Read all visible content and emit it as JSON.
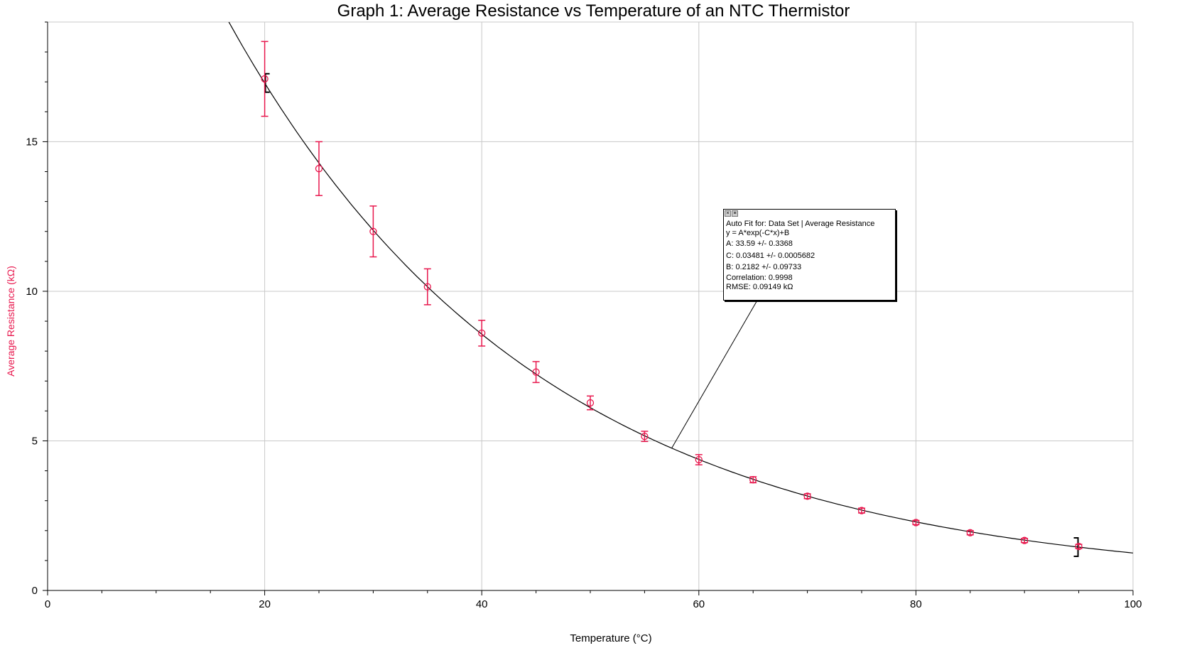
{
  "chart_data": {
    "type": "scatter",
    "title": "Graph 1: Average Resistance vs Temperature of an NTC Thermistor",
    "xlabel": "Temperature (°C)",
    "ylabel": "Average Resistance (kΩ)",
    "xlim": [
      0,
      100
    ],
    "ylim": [
      0,
      19
    ],
    "x_ticks": [
      0,
      20,
      40,
      60,
      80,
      100
    ],
    "y_ticks": [
      0,
      5,
      10,
      15
    ],
    "grid": true,
    "series": [
      {
        "name": "Average Resistance",
        "color": "#e8174d",
        "x": [
          20,
          25,
          30,
          35,
          40,
          45,
          50,
          55,
          60,
          65,
          70,
          75,
          80,
          85,
          90,
          95
        ],
        "y": [
          17.1,
          14.1,
          12.0,
          10.15,
          8.6,
          7.3,
          6.27,
          5.15,
          4.37,
          3.7,
          3.15,
          2.67,
          2.27,
          1.93,
          1.67,
          1.47
        ],
        "err": [
          1.25,
          0.9,
          0.85,
          0.6,
          0.43,
          0.35,
          0.23,
          0.17,
          0.17,
          0.1,
          0.08,
          0.08,
          0.07,
          0.07,
          0.07,
          0.07
        ]
      }
    ],
    "fit": {
      "equation": "y = A*exp(-C*x)+B",
      "A": 33.59,
      "C": 0.03481,
      "B": 0.2182,
      "x_range": [
        20,
        95
      ],
      "lines": [
        "Auto Fit for: Data Set | Average Resistance",
        "y = A*exp(-C*x)+B",
        "A: 33.59 +/- 0.3368",
        "C: 0.03481 +/- 0.0005682",
        "B: 0.2182 +/- 0.09733",
        "Correlation: 0.9998",
        "RMSE: 0.09149 kΩ"
      ]
    },
    "colors": {
      "data": "#e8174d",
      "grid": "#c8c8c8",
      "axis": "#000000",
      "fit": "#000000"
    }
  }
}
